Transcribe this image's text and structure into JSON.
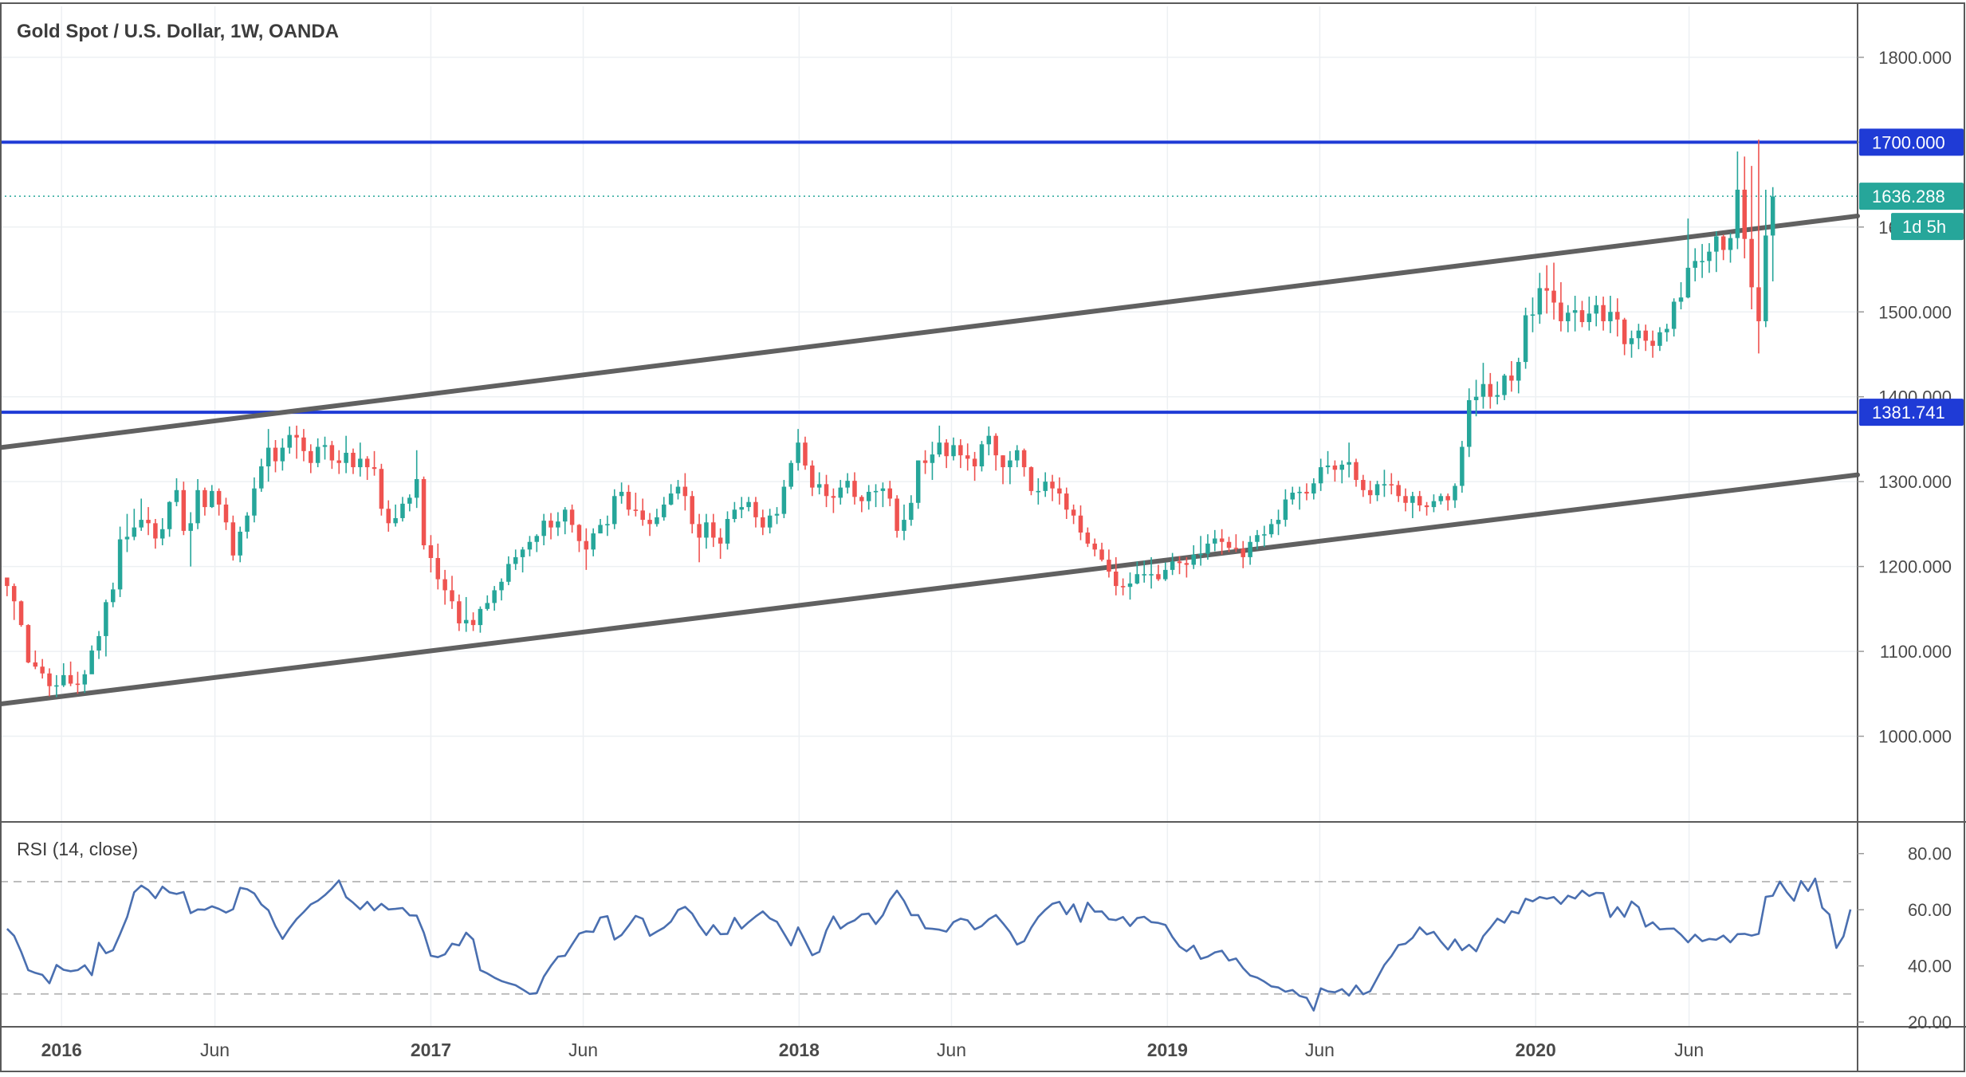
{
  "title": "Gold Spot / U.S. Dollar, 1W, OANDA",
  "price_axis": {
    "ticks": [
      "1000.000",
      "1100.000",
      "1200.000",
      "1300.000",
      "1400.000",
      "1500.000",
      "1600.000",
      "1700.000",
      "1800.000"
    ]
  },
  "rsi_axis": {
    "ticks": [
      "20.00",
      "40.00",
      "60.00",
      "80.00"
    ]
  },
  "time_axis": {
    "ticks": [
      "2016",
      "Jun",
      "2017",
      "Jun",
      "2018",
      "Jun",
      "2019",
      "Jun",
      "2020",
      "Jun"
    ]
  },
  "labels": {
    "resistance": "1700.000",
    "last_price": "1636.288",
    "countdown": "1d 5h",
    "support": "1381.741",
    "rsi_title": "RSI (14, close)"
  },
  "colors": {
    "up": "#26a69a",
    "down": "#ef5350",
    "level_line": "#1f3bd6",
    "channel_line": "#616161",
    "rsi_line": "#4a6fb0",
    "last_price_tag": "#26a69a"
  },
  "chart_data": [
    {
      "type": "candlestick",
      "title": "Gold Spot / U.S. Dollar, 1W, OANDA",
      "x_range": [
        "2015-11-01",
        "2020-11-15"
      ],
      "y_range": [
        900,
        1860
      ],
      "closes": [
        1177,
        1159,
        1131,
        1087,
        1082,
        1074,
        1059,
        1060,
        1072,
        1062,
        1061,
        1073,
        1101,
        1118,
        1158,
        1173,
        1232,
        1235,
        1246,
        1255,
        1251,
        1233,
        1244,
        1276,
        1290,
        1242,
        1251,
        1290,
        1270,
        1289,
        1273,
        1252,
        1213,
        1241,
        1260,
        1292,
        1318,
        1340,
        1324,
        1340,
        1355,
        1352,
        1336,
        1322,
        1341,
        1343,
        1325,
        1322,
        1334,
        1317,
        1327,
        1317,
        1315,
        1268,
        1251,
        1257,
        1274,
        1281,
        1303,
        1225,
        1210,
        1185,
        1172,
        1159,
        1133,
        1137,
        1131,
        1150,
        1157,
        1172,
        1182,
        1203,
        1211,
        1220,
        1229,
        1236,
        1254,
        1246,
        1253,
        1267,
        1249,
        1230,
        1220,
        1239,
        1249,
        1250,
        1283,
        1288,
        1267,
        1266,
        1255,
        1250,
        1258,
        1273,
        1286,
        1294,
        1283,
        1250,
        1234,
        1252,
        1234,
        1227,
        1256,
        1267,
        1270,
        1276,
        1258,
        1246,
        1260,
        1262,
        1294,
        1322,
        1346,
        1319,
        1293,
        1297,
        1283,
        1281,
        1293,
        1301,
        1282,
        1277,
        1288,
        1289,
        1292,
        1280,
        1242,
        1255,
        1275,
        1325,
        1322,
        1332,
        1346,
        1330,
        1343,
        1331,
        1327,
        1318,
        1344,
        1354,
        1331,
        1317,
        1325,
        1337,
        1317,
        1289,
        1289,
        1300,
        1292,
        1286,
        1267,
        1260,
        1240,
        1227,
        1220,
        1208,
        1194,
        1177,
        1176,
        1180,
        1191,
        1191,
        1191,
        1185,
        1196,
        1206,
        1204,
        1202,
        1214,
        1215,
        1227,
        1233,
        1229,
        1222,
        1221,
        1211,
        1229,
        1237,
        1238,
        1250,
        1255,
        1279,
        1287,
        1288,
        1286,
        1298,
        1317,
        1319,
        1314,
        1320,
        1323,
        1302,
        1290,
        1284,
        1297,
        1297,
        1296,
        1283,
        1275,
        1283,
        1272,
        1270,
        1277,
        1283,
        1278,
        1295,
        1341,
        1396,
        1400,
        1415,
        1400,
        1402,
        1425,
        1419,
        1441,
        1496,
        1497,
        1528,
        1525,
        1511,
        1489,
        1499,
        1502,
        1488,
        1498,
        1508,
        1489,
        1500,
        1491,
        1462,
        1469,
        1478,
        1466,
        1460,
        1476,
        1480,
        1512,
        1517,
        1552,
        1560,
        1560,
        1571,
        1589,
        1573,
        1587,
        1644,
        1586,
        1529,
        1489,
        1590,
        1636
      ],
      "highs": [
        1186,
        1180,
        1160,
        1132,
        1101,
        1091,
        1080,
        1072,
        1086,
        1088,
        1076,
        1078,
        1107,
        1124,
        1161,
        1181,
        1247,
        1262,
        1268,
        1280,
        1270,
        1256,
        1257,
        1277,
        1304,
        1300,
        1264,
        1303,
        1293,
        1296,
        1292,
        1281,
        1260,
        1247,
        1264,
        1305,
        1327,
        1362,
        1349,
        1351,
        1365,
        1366,
        1362,
        1344,
        1351,
        1353,
        1348,
        1337,
        1354,
        1339,
        1346,
        1330,
        1336,
        1321,
        1278,
        1273,
        1282,
        1285,
        1337,
        1306,
        1237,
        1227,
        1196,
        1189,
        1167,
        1164,
        1146,
        1153,
        1166,
        1177,
        1186,
        1212,
        1220,
        1223,
        1236,
        1238,
        1262,
        1263,
        1264,
        1270,
        1273,
        1250,
        1245,
        1245,
        1256,
        1260,
        1291,
        1299,
        1296,
        1287,
        1280,
        1263,
        1268,
        1282,
        1297,
        1302,
        1310,
        1289,
        1262,
        1262,
        1262,
        1245,
        1265,
        1276,
        1282,
        1282,
        1282,
        1267,
        1268,
        1270,
        1302,
        1325,
        1362,
        1353,
        1325,
        1311,
        1308,
        1292,
        1302,
        1310,
        1311,
        1284,
        1296,
        1297,
        1299,
        1301,
        1284,
        1273,
        1284,
        1325,
        1337,
        1347,
        1366,
        1350,
        1352,
        1350,
        1345,
        1335,
        1348,
        1365,
        1357,
        1331,
        1336,
        1343,
        1339,
        1318,
        1304,
        1311,
        1308,
        1305,
        1293,
        1273,
        1272,
        1246,
        1233,
        1228,
        1220,
        1211,
        1186,
        1193,
        1206,
        1207,
        1211,
        1202,
        1205,
        1216,
        1212,
        1211,
        1225,
        1236,
        1238,
        1243,
        1244,
        1235,
        1238,
        1230,
        1236,
        1243,
        1248,
        1256,
        1267,
        1291,
        1294,
        1294,
        1298,
        1304,
        1327,
        1336,
        1325,
        1325,
        1346,
        1327,
        1308,
        1301,
        1301,
        1314,
        1310,
        1301,
        1292,
        1288,
        1289,
        1276,
        1285,
        1286,
        1286,
        1298,
        1348,
        1410,
        1420,
        1440,
        1428,
        1418,
        1427,
        1442,
        1446,
        1505,
        1517,
        1546,
        1555,
        1558,
        1535,
        1508,
        1519,
        1513,
        1518,
        1519,
        1518,
        1519,
        1516,
        1493,
        1478,
        1486,
        1485,
        1478,
        1482,
        1486,
        1516,
        1535,
        1610,
        1575,
        1580,
        1581,
        1595,
        1591,
        1593,
        1689,
        1683,
        1672,
        1703,
        1644,
        1647
      ],
      "lows": [
        1165,
        1137,
        1129,
        1086,
        1079,
        1068,
        1047,
        1046,
        1058,
        1059,
        1050,
        1051,
        1075,
        1091,
        1094,
        1152,
        1164,
        1217,
        1231,
        1242,
        1237,
        1221,
        1225,
        1235,
        1271,
        1237,
        1200,
        1244,
        1260,
        1269,
        1260,
        1243,
        1207,
        1205,
        1233,
        1252,
        1288,
        1300,
        1311,
        1313,
        1333,
        1327,
        1324,
        1310,
        1317,
        1326,
        1315,
        1309,
        1310,
        1309,
        1306,
        1302,
        1307,
        1260,
        1241,
        1247,
        1253,
        1265,
        1269,
        1220,
        1193,
        1173,
        1155,
        1150,
        1124,
        1123,
        1124,
        1122,
        1148,
        1148,
        1160,
        1178,
        1196,
        1193,
        1212,
        1217,
        1225,
        1232,
        1236,
        1238,
        1240,
        1217,
        1196,
        1212,
        1239,
        1236,
        1244,
        1274,
        1260,
        1259,
        1248,
        1236,
        1247,
        1254,
        1272,
        1279,
        1266,
        1239,
        1205,
        1221,
        1223,
        1209,
        1220,
        1252,
        1257,
        1265,
        1246,
        1237,
        1239,
        1250,
        1257,
        1291,
        1313,
        1314,
        1283,
        1285,
        1270,
        1263,
        1273,
        1286,
        1273,
        1264,
        1267,
        1270,
        1270,
        1271,
        1234,
        1231,
        1248,
        1268,
        1309,
        1302,
        1329,
        1316,
        1325,
        1316,
        1313,
        1301,
        1312,
        1331,
        1313,
        1297,
        1297,
        1317,
        1306,
        1284,
        1273,
        1282,
        1277,
        1273,
        1256,
        1250,
        1231,
        1223,
        1212,
        1206,
        1187,
        1166,
        1166,
        1161,
        1179,
        1181,
        1174,
        1183,
        1183,
        1190,
        1191,
        1187,
        1197,
        1201,
        1208,
        1218,
        1214,
        1217,
        1217,
        1198,
        1202,
        1220,
        1223,
        1234,
        1237,
        1247,
        1273,
        1267,
        1278,
        1279,
        1289,
        1309,
        1300,
        1298,
        1305,
        1294,
        1282,
        1274,
        1277,
        1282,
        1285,
        1276,
        1265,
        1257,
        1265,
        1260,
        1264,
        1273,
        1266,
        1269,
        1287,
        1329,
        1377,
        1386,
        1386,
        1391,
        1396,
        1406,
        1404,
        1433,
        1476,
        1486,
        1498,
        1491,
        1477,
        1476,
        1477,
        1482,
        1478,
        1483,
        1478,
        1475,
        1471,
        1449,
        1446,
        1456,
        1454,
        1446,
        1454,
        1465,
        1471,
        1503,
        1516,
        1536,
        1540,
        1546,
        1547,
        1561,
        1558,
        1574,
        1563,
        1503,
        1451,
        1482,
        1536
      ]
    },
    {
      "type": "line",
      "title": "RSI (14, close)",
      "x_range": [
        "2015-11-01",
        "2020-11-15"
      ],
      "y_range": [
        18.3,
        91.0
      ],
      "reference_lines": [
        30,
        70
      ],
      "values": [
        53.2,
        50.7,
        45.0,
        38.5,
        37.5,
        36.8,
        33.8,
        40.3,
        38.6,
        38.1,
        38.5,
        40.2,
        36.7,
        48.2,
        44.5,
        45.6,
        51.3,
        57.4,
        66.2,
        68.6,
        67.0,
        64.1,
        68.2,
        66.2,
        65.6,
        66.3,
        58.8,
        60.1,
        60.0,
        61.2,
        60.3,
        59.0,
        60.2,
        67.8,
        67.3,
        65.8,
        61.9,
        59.8,
        54.1,
        49.6,
        53.4,
        56.7,
        59.2,
        61.9,
        63.2,
        65.2,
        67.6,
        70.4,
        64.5,
        62.5,
        60.2,
        62.8,
        59.8,
        62.1,
        60.1,
        60.3,
        60.6,
        58.0,
        57.9,
        51.8,
        43.6,
        43.1,
        44.1,
        47.9,
        47.3,
        51.8,
        49.4,
        38.5,
        37.3,
        35.8,
        34.6,
        33.8,
        33.1,
        31.6,
        30.0,
        30.3,
        36.2,
        40.0,
        43.3,
        43.6,
        47.6,
        51.5,
        52.3,
        52.1,
        57.2,
        57.7,
        49.4,
        51.0,
        54.3,
        57.8,
        56.8,
        50.7,
        52.2,
        53.6,
        55.8,
        59.9,
        61.0,
        58.6,
        54.4,
        51.0,
        54.5,
        51.3,
        51.4,
        57.1,
        53.3,
        55.6,
        57.6,
        59.4,
        56.9,
        55.7,
        51.5,
        47.3,
        53.7,
        48.8,
        43.8,
        45.0,
        52.6,
        57.6,
        53.3,
        55.1,
        56.2,
        58.3,
        58.6,
        54.9,
        58.1,
        63.5,
        66.8,
        63.1,
        58.1,
        58.1,
        53.4,
        53.2,
        52.9,
        52.2,
        55.6,
        56.8,
        56.2,
        53.0,
        54.2,
        56.6,
        58.1,
        55.2,
        52.0,
        47.6,
        48.8,
        53.6,
        57.4,
        60.0,
        62.1,
        62.8,
        58.4,
        61.9,
        55.7,
        62.5,
        59.3,
        59.4,
        56.6,
        56.3,
        57.4,
        54.2,
        57.0,
        57.5,
        55.6,
        55.3,
        54.6,
        50.3,
        46.9,
        45.2,
        47.2,
        42.5,
        43.3,
        44.8,
        45.4,
        41.9,
        42.6,
        39.2,
        36.6,
        35.8,
        34.4,
        32.7,
        32.3,
        30.8,
        31.4,
        29.3,
        28.6,
        24.1,
        32.0,
        30.9,
        30.6,
        31.7,
        29.4,
        33.0,
        29.9,
        31.0,
        35.7,
        40.3,
        43.5,
        47.4,
        47.9,
        50.0,
        53.7,
        51.2,
        52.1,
        48.7,
        45.8,
        49.4,
        45.6,
        47.5,
        45.2,
        50.6,
        53.5,
        56.8,
        55.4,
        59.4,
        58.7,
        63.9,
        63.0,
        64.5,
        63.9,
        64.5,
        62.1,
        65.0,
        64.0,
        66.8,
        64.9,
        66.0,
        65.9,
        57.4,
        60.9,
        57.5,
        62.9,
        60.9,
        54.0,
        55.5,
        53.0,
        53.2,
        53.3,
        51.1,
        48.4,
        51.1,
        48.8,
        49.6,
        49.3,
        50.8,
        48.4,
        51.3,
        51.4,
        50.8,
        51.4,
        64.6,
        65.0,
        70.0,
        66.2,
        63.2,
        70.2,
        66.7,
        71.1,
        60.7,
        58.3,
        46.4,
        50.5,
        60.1
      ]
    }
  ]
}
